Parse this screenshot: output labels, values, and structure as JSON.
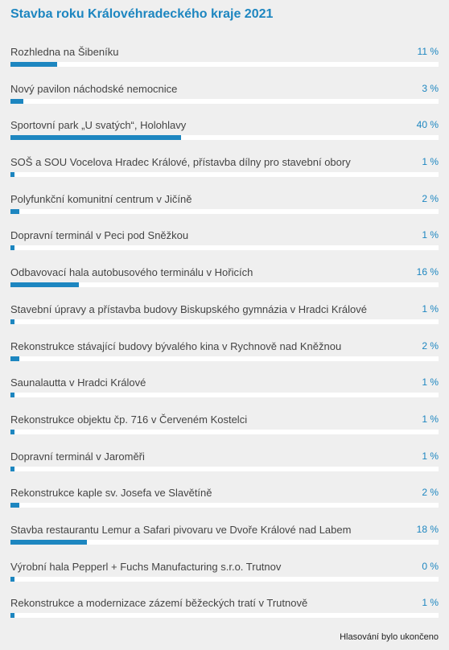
{
  "title": "Stavba roku Královéhradeckého kraje 2021",
  "accent_color": "#1d86c0",
  "items": [
    {
      "label": "Rozhledna na Šibeníku",
      "percent_text": "11 %",
      "percent": 11
    },
    {
      "label": "Nový pavilon náchodské nemocnice",
      "percent_text": "3 %",
      "percent": 3
    },
    {
      "label": "Sportovní park „U svatých“, Holohlavy",
      "percent_text": "40 %",
      "percent": 40
    },
    {
      "label": "SOŠ a SOU Vocelova Hradec Králové, přístavba dílny pro stavební obory",
      "percent_text": "1 %",
      "percent": 1
    },
    {
      "label": "Polyfunkční komunitní centrum v Jičíně",
      "percent_text": "2 %",
      "percent": 2
    },
    {
      "label": "Dopravní terminál v Peci pod Sněžkou",
      "percent_text": "1 %",
      "percent": 1
    },
    {
      "label": "Odbavovací hala autobusového terminálu v Hořicích",
      "percent_text": "16 %",
      "percent": 16
    },
    {
      "label": "Stavební úpravy a přístavba budovy Biskupského gymnázia v Hradci Králové",
      "percent_text": "1 %",
      "percent": 1
    },
    {
      "label": "Rekonstrukce stávající budovy bývalého kina v Rychnově nad Kněžnou",
      "percent_text": "2 %",
      "percent": 2
    },
    {
      "label": "Saunalautta v Hradci Králové",
      "percent_text": "1 %",
      "percent": 1
    },
    {
      "label": "Rekonstrukce objektu čp. 716 v Červeném Kostelci",
      "percent_text": "1 %",
      "percent": 1
    },
    {
      "label": "Dopravní terminál v Jaroměři",
      "percent_text": "1 %",
      "percent": 1
    },
    {
      "label": "Rekonstrukce kaple sv. Josefa ve Slavětíně",
      "percent_text": "2 %",
      "percent": 2
    },
    {
      "label": "Stavba restaurantu Lemur a Safari pivovaru ve Dvoře Králové nad Labem",
      "percent_text": "18 %",
      "percent": 18
    },
    {
      "label": "Výrobní hala Pepperl + Fuchs Manufacturing s.r.o. Trutnov",
      "percent_text": "0 %",
      "percent": 0
    },
    {
      "label": "Rekonstrukce a modernizace zázemí běžeckých tratí v Trutnově",
      "percent_text": "1 %",
      "percent": 1
    }
  ],
  "footer": "Hlasování bylo ukončeno"
}
